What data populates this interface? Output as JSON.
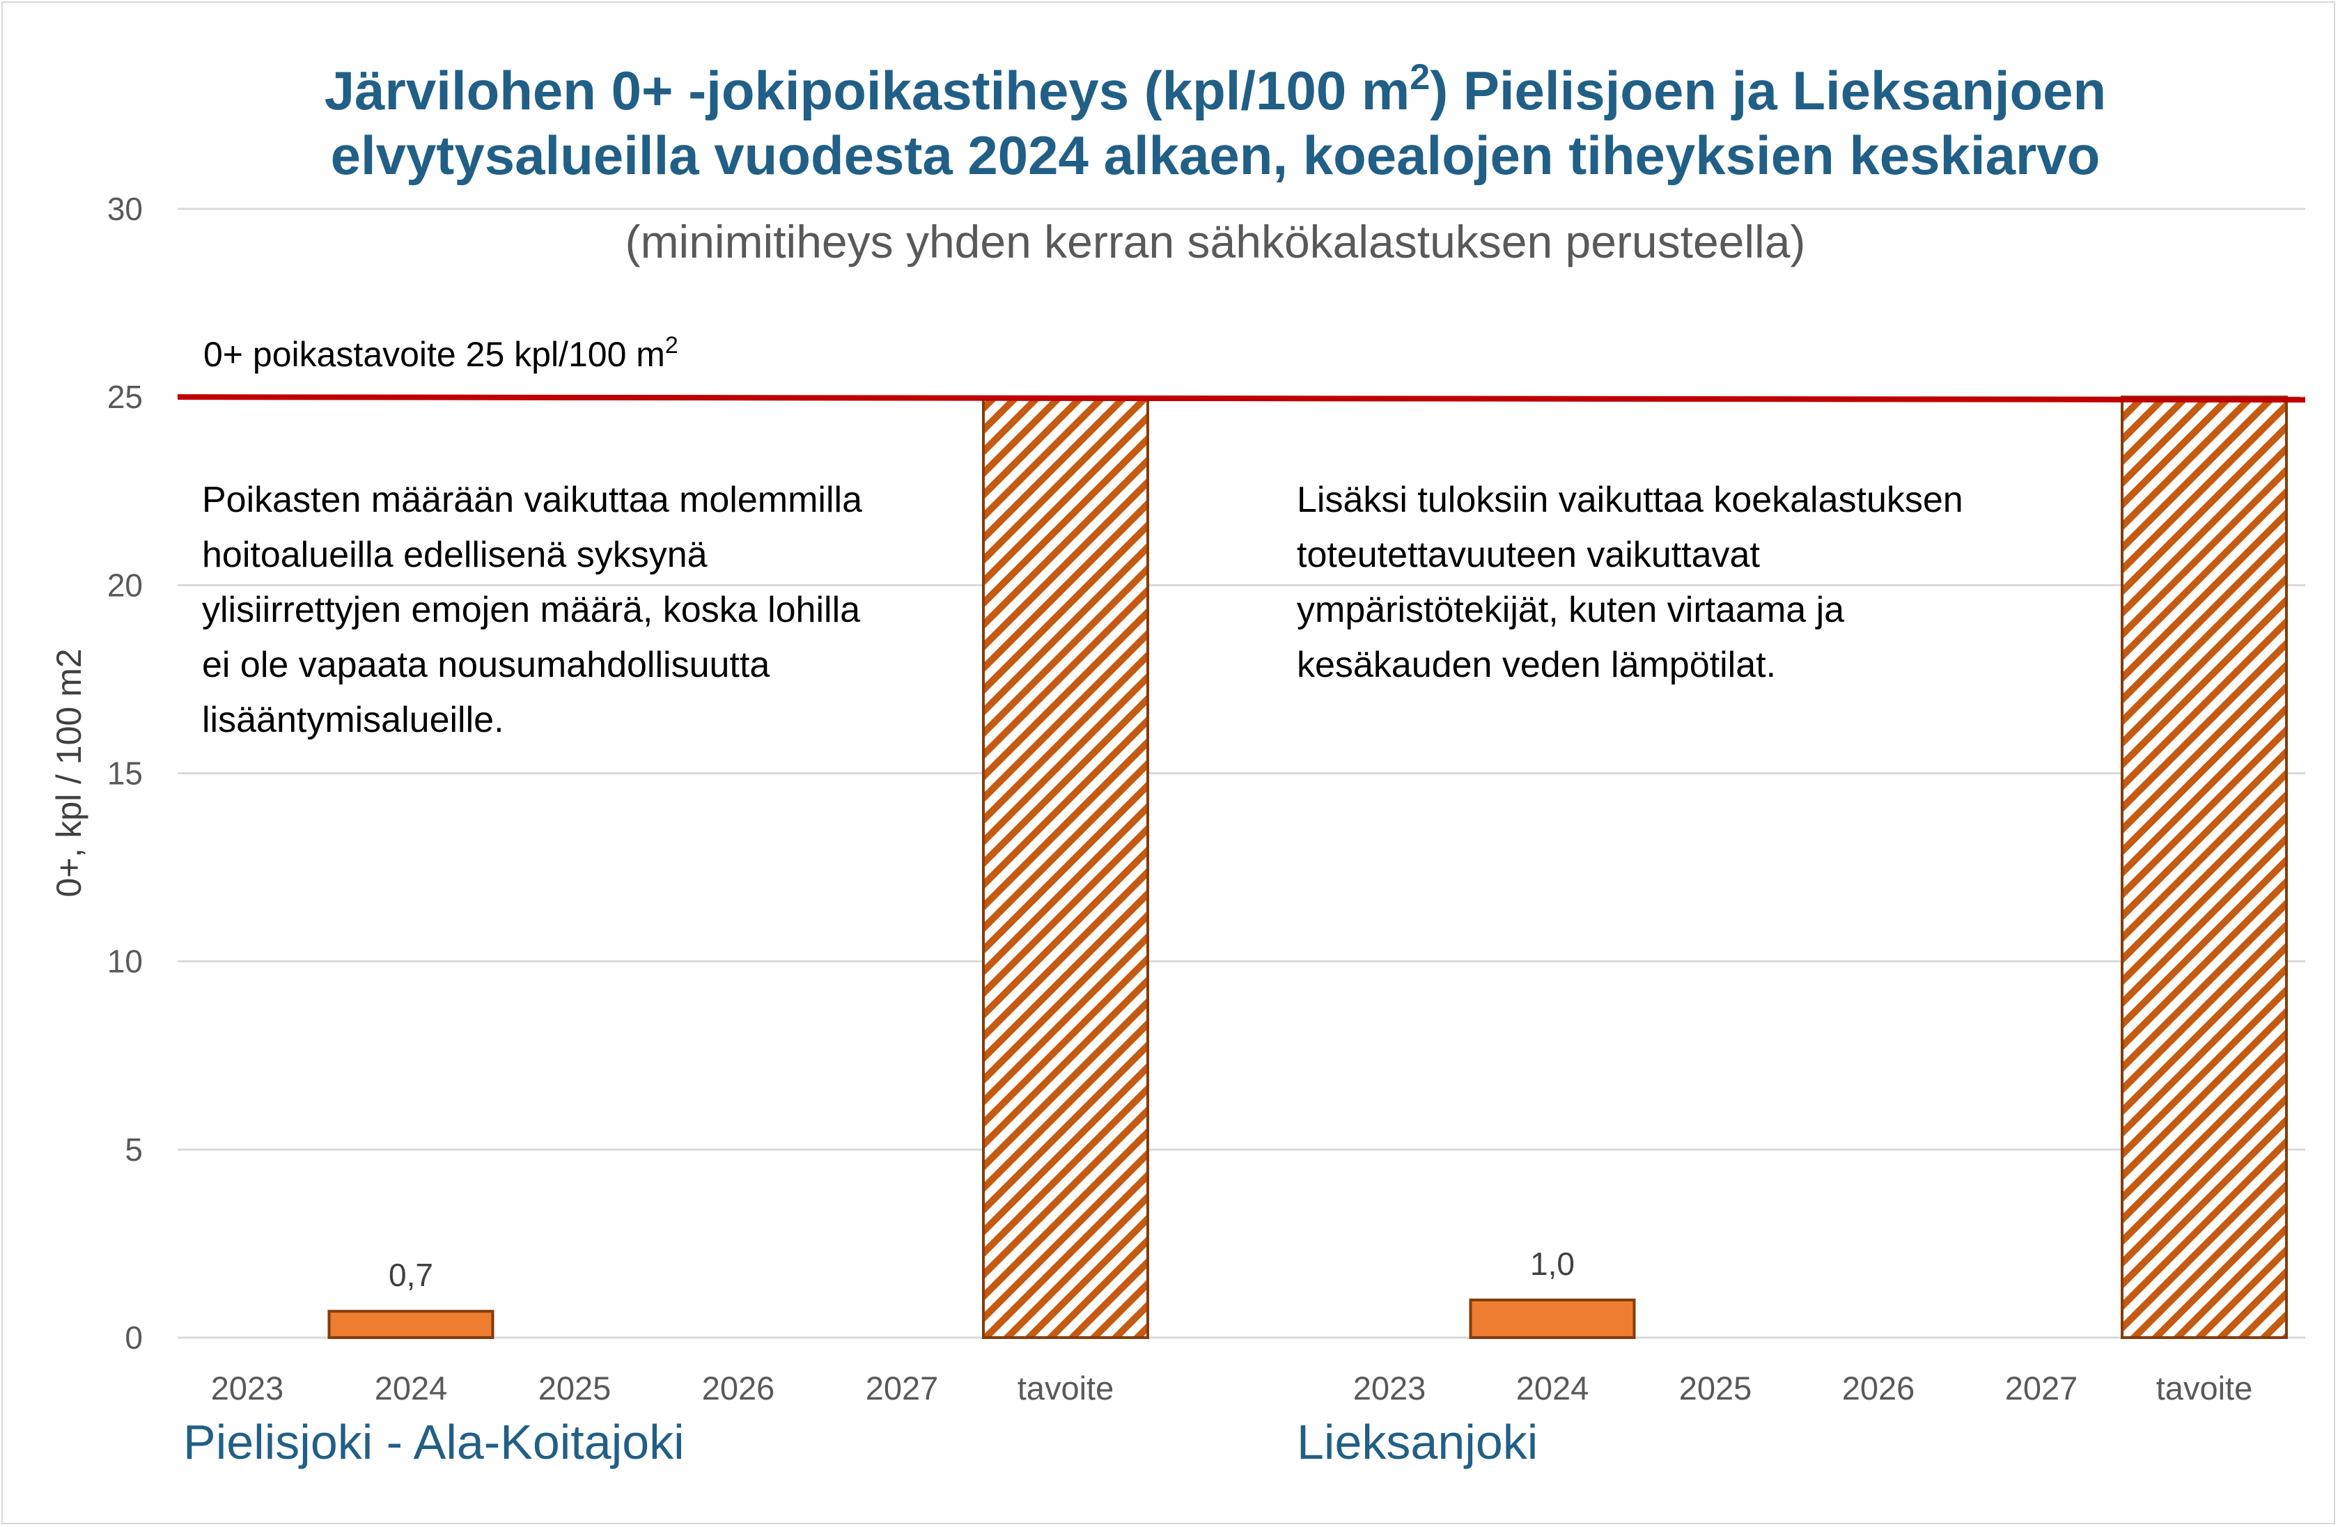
{
  "chart_data": {
    "type": "bar",
    "title_lines": [
      [
        "Järvilohen 0+ -jokipoikastiheys (kpl/100 m",
        "2",
        ") Pielisjoen ja Lieksanjoen"
      ],
      [
        "elvytysalueilla vuodesta 2024 alkaen, koealojen tiheyksien keskiarvo"
      ]
    ],
    "subtitle": "(minimitiheys yhden kerran sähkökalastuksen perusteella)",
    "ylabel": "0+, kpl / 100 m2",
    "ylim": [
      0,
      30
    ],
    "yticks": [
      0,
      5,
      10,
      15,
      20,
      25,
      30
    ],
    "grid": true,
    "legend": "none",
    "target_line": {
      "value": 25,
      "label": "0+ poikastavoite 25 kpl/100 m",
      "label_sup": "2",
      "color": "#c00000"
    },
    "groups": [
      {
        "name": "Pielisjoki  -  Ala-Koitajoki",
        "categories": [
          "2023",
          "2024",
          "2025",
          "2026",
          "2027",
          "tavoite"
        ],
        "values": [
          null,
          0.7,
          null,
          null,
          null,
          25
        ],
        "data_labels": [
          "",
          "0,7",
          "",
          "",
          "",
          ""
        ],
        "note_lines": [
          "Poikasten määrään vaikuttaa molemmilla",
          "hoitoalueilla edellisenä syksynä",
          "ylisiirrettyjen emojen määrä, koska lohilla",
          "ei ole vapaata nousumahdollisuutta",
          "lisääntymisalueille."
        ]
      },
      {
        "name": "Lieksanjoki",
        "categories": [
          "2023",
          "2024",
          "2025",
          "2026",
          "2027",
          "tavoite"
        ],
        "values": [
          null,
          1.0,
          null,
          null,
          null,
          25
        ],
        "data_labels": [
          "",
          "1,0",
          "",
          "",
          "",
          ""
        ],
        "note_lines": [
          "Lisäksi tuloksiin vaikuttaa koekalastuksen",
          "toteutettavuuteen vaikuttavat",
          "ympäristötekijät, kuten virtaama ja",
          "kesäkauden veden lämpötilat."
        ]
      }
    ],
    "colors": {
      "bar_fill": "#ed7d31",
      "bar_edge": "#843c0c",
      "target_hatch": "#c55a11",
      "target_line": "#c00000",
      "grid": "#d9d9d9",
      "title": "#215f86"
    }
  }
}
